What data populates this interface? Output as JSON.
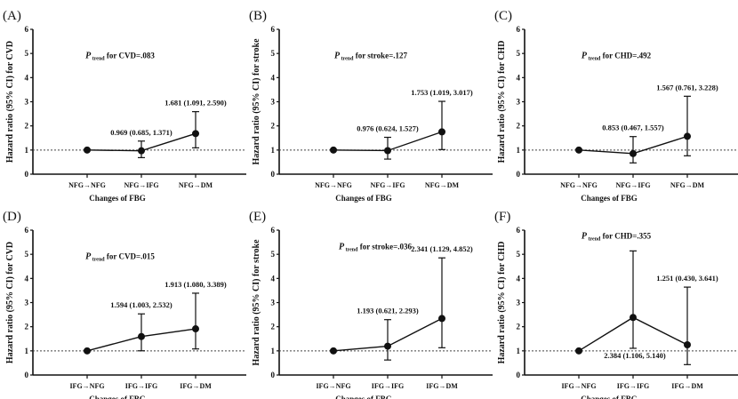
{
  "chart_data": [
    {
      "type": "line",
      "panel_label": "(A)",
      "ylabel": "Hazard ratio (95% CI) for CVD",
      "xlabel": "Changes of FBG",
      "ylim": [
        0,
        6
      ],
      "yticks": [
        "0",
        "1",
        "2",
        "3",
        "4",
        "5",
        "6"
      ],
      "reference_line": 1,
      "categories": [
        "NFG→NFG",
        "NFG→IFG",
        "NFG→DM"
      ],
      "ptrend": {
        "p": "P",
        "sub": "trend",
        "rest": " for CVD=.083"
      },
      "points": [
        {
          "hr": 1,
          "lo": null,
          "hi": null,
          "label": null
        },
        {
          "hr": 0.969,
          "lo": 0.685,
          "hi": 1.371,
          "label": "0.969 (0.685, 1.371)",
          "label_side": "above"
        },
        {
          "hr": 1.681,
          "lo": 1.091,
          "hi": 2.59,
          "label": "1.681 (1.091, 2.590)",
          "label_side": "above"
        }
      ]
    },
    {
      "type": "line",
      "panel_label": "(B)",
      "ylabel": "Hazard ratio (95% CI) for stroke",
      "xlabel": "Changes of FBG",
      "ylim": [
        0,
        6
      ],
      "yticks": [
        "0",
        "1",
        "2",
        "3",
        "4",
        "5",
        "6"
      ],
      "reference_line": 1,
      "categories": [
        "NFG→NFG",
        "NFG→IFG",
        "NFG→DM"
      ],
      "ptrend": {
        "p": "P",
        "sub": "trend",
        "rest": " for stroke=.127"
      },
      "points": [
        {
          "hr": 1,
          "lo": null,
          "hi": null,
          "label": null
        },
        {
          "hr": 0.976,
          "lo": 0.624,
          "hi": 1.527,
          "label": "0.976 (0.624, 1.527)",
          "label_side": "above"
        },
        {
          "hr": 1.753,
          "lo": 1.019,
          "hi": 3.017,
          "label": "1.753 (1.019, 3.017)",
          "label_side": "above"
        }
      ]
    },
    {
      "type": "line",
      "panel_label": "(C)",
      "ylabel": "Hazard ratio (95% CI) for CHD",
      "xlabel": "Changes of FBG",
      "ylim": [
        0,
        6
      ],
      "yticks": [
        "0",
        "1",
        "2",
        "3",
        "4",
        "5",
        "6"
      ],
      "reference_line": 1,
      "categories": [
        "NFG→NFG",
        "NFG→IFG",
        "NFG→DM"
      ],
      "ptrend": {
        "p": "P",
        "sub": "trend",
        "rest": " for CHD=.492"
      },
      "points": [
        {
          "hr": 1,
          "lo": null,
          "hi": null,
          "label": null
        },
        {
          "hr": 0.853,
          "lo": 0.467,
          "hi": 1.557,
          "label": "0.853 (0.467, 1.557)",
          "label_side": "above"
        },
        {
          "hr": 1.567,
          "lo": 0.761,
          "hi": 3.228,
          "label": "1.567 (0.761, 3.228)",
          "label_side": "above"
        }
      ]
    },
    {
      "type": "line",
      "panel_label": "(D)",
      "ylabel": "Hazard ratio (95% CI) for CVD",
      "xlabel": "Changes of FBG",
      "ylim": [
        0,
        6
      ],
      "yticks": [
        "0",
        "1",
        "2",
        "3",
        "4",
        "5",
        "6"
      ],
      "reference_line": 1,
      "categories": [
        "IFG→NFG",
        "IFG→IFG",
        "IFG→DM"
      ],
      "ptrend": {
        "p": "P",
        "sub": "trend",
        "rest": " for CVD=.015"
      },
      "points": [
        {
          "hr": 1,
          "lo": null,
          "hi": null,
          "label": null
        },
        {
          "hr": 1.594,
          "lo": 1.003,
          "hi": 2.532,
          "label": "1.594 (1.003, 2.532)",
          "label_side": "above"
        },
        {
          "hr": 1.913,
          "lo": 1.08,
          "hi": 3.389,
          "label": "1.913 (1.080, 3.389)",
          "label_side": "above"
        }
      ]
    },
    {
      "type": "line",
      "panel_label": "(E)",
      "ylabel": "Hazard ratio (95% CI) for stroke",
      "xlabel": "Changes of FBG",
      "ylim": [
        0,
        6
      ],
      "yticks": [
        "0",
        "1",
        "2",
        "3",
        "4",
        "5",
        "6"
      ],
      "reference_line": 1,
      "categories": [
        "IFG→NFG",
        "IFG→IFG",
        "IFG→DM"
      ],
      "ptrend": {
        "p": "P",
        "sub": "trend",
        "rest": " for stroke=.036"
      },
      "points": [
        {
          "hr": 1,
          "lo": null,
          "hi": null,
          "label": null
        },
        {
          "hr": 1.193,
          "lo": 0.621,
          "hi": 2.293,
          "label": "1.193 (0.621, 2.293)",
          "label_side": "above"
        },
        {
          "hr": 2.341,
          "lo": 1.129,
          "hi": 4.852,
          "label": "2.341 (1.129, 4.852)",
          "label_side": "above"
        }
      ]
    },
    {
      "type": "line",
      "panel_label": "(F)",
      "ylabel": "Hazard ratio (95% CI) for CHD",
      "xlabel": "Changes of FBG",
      "ylim": [
        0,
        6
      ],
      "yticks": [
        "0",
        "1",
        "2",
        "3",
        "4",
        "5",
        "6"
      ],
      "reference_line": 1,
      "categories": [
        "IFG→NFG",
        "IFG→IFG",
        "IFG→DM"
      ],
      "ptrend": {
        "p": "P",
        "sub": "trend",
        "rest": " for CHD=.355"
      },
      "points": [
        {
          "hr": 1,
          "lo": null,
          "hi": null,
          "label": null
        },
        {
          "hr": 2.384,
          "lo": 1.106,
          "hi": 5.14,
          "label": "2.384 (1.106, 5.140)",
          "label_side": "below"
        },
        {
          "hr": 1.251,
          "lo": 0.43,
          "hi": 3.641,
          "label": "1.251 (0.430, 3.641)",
          "label_side": "above"
        }
      ]
    }
  ]
}
